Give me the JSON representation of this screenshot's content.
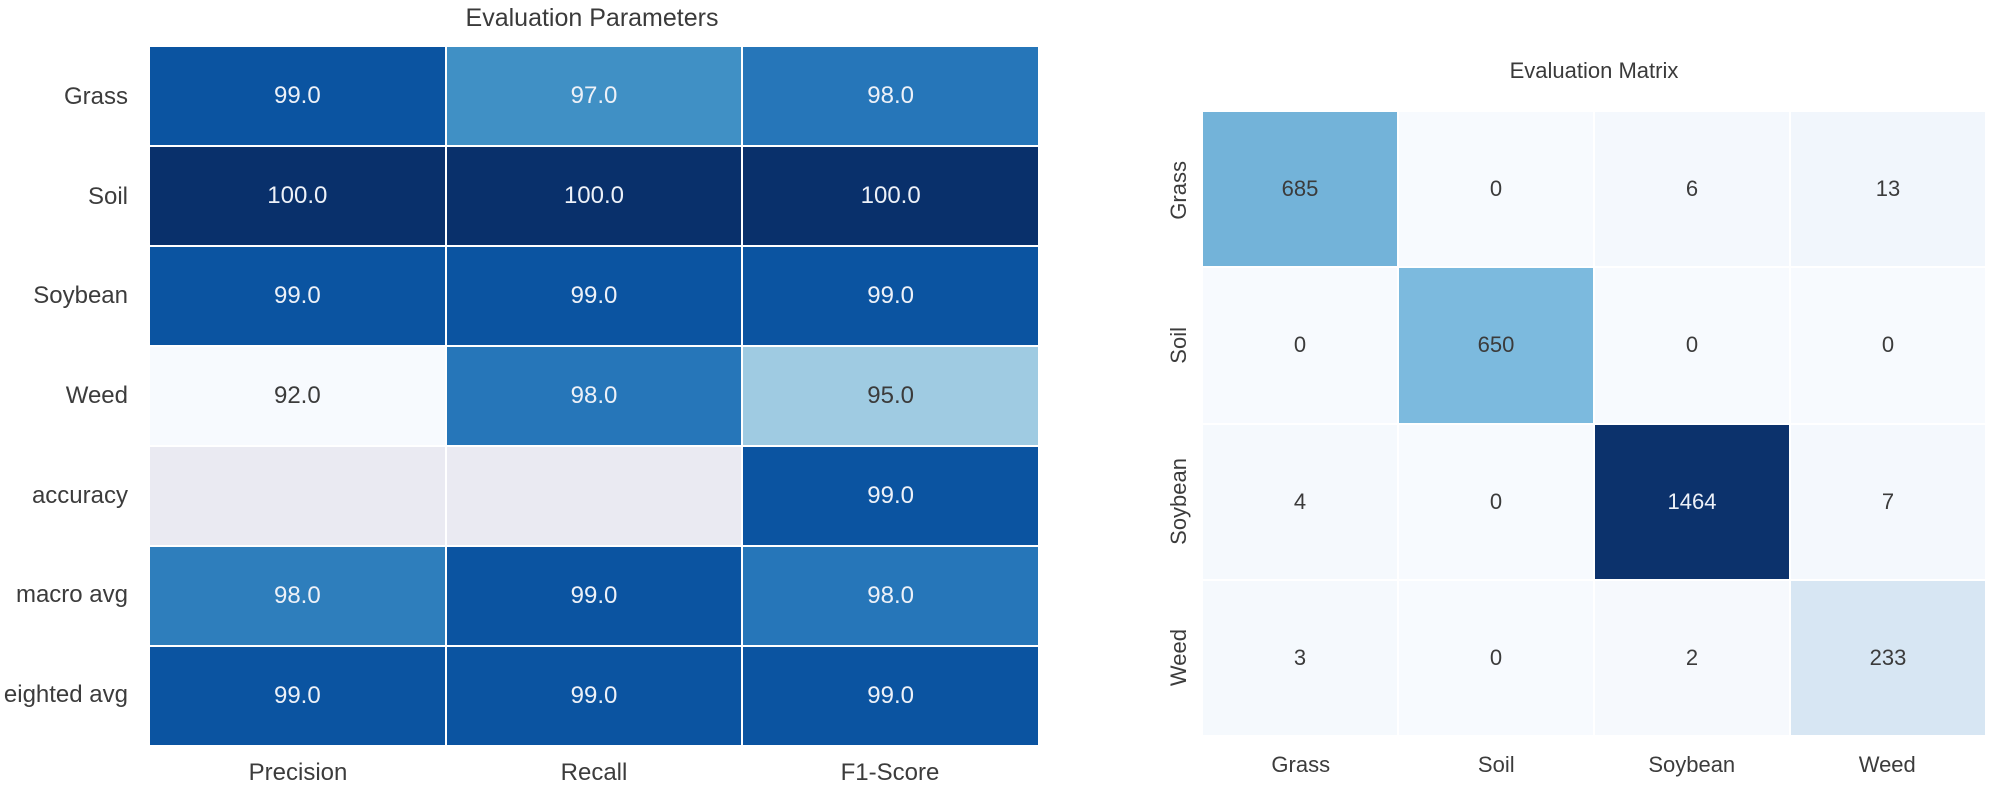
{
  "accent_colors": {
    "colormap": "Blues",
    "darkest_blue": "#09306b",
    "dark_blue": "#0b54a1",
    "medium_blue": "#2676b9",
    "light_blue": "#9fcbe2",
    "near_white_blue": "#f7fafe",
    "nan_cell": "#eaeaf2",
    "dark_text": "#3b3b3b",
    "light_text": "#edf1f8",
    "label_text": "#3c3c3c"
  },
  "chart_data": [
    {
      "id": "evaluation-parameters",
      "type": "heatmap",
      "title": "Evaluation Parameters",
      "row_labels": [
        "Grass",
        "Soil",
        "Soybean",
        "Weed",
        "accuracy",
        "macro avg",
        "eighted avg"
      ],
      "col_labels": [
        "Precision",
        "Recall",
        "F1-Score"
      ],
      "vmin": 92,
      "vmax": 100,
      "values": [
        [
          99.0,
          97.0,
          98.0
        ],
        [
          100.0,
          100.0,
          100.0
        ],
        [
          99.0,
          99.0,
          99.0
        ],
        [
          92.0,
          98.0,
          95.0
        ],
        [
          null,
          null,
          99.0
        ],
        [
          98.0,
          99.0,
          98.0
        ],
        [
          99.0,
          99.0,
          99.0
        ]
      ],
      "cell_text": [
        [
          "99.0",
          "97.0",
          "98.0"
        ],
        [
          "100.0",
          "100.0",
          "100.0"
        ],
        [
          "99.0",
          "99.0",
          "99.0"
        ],
        [
          "92.0",
          "98.0",
          "95.0"
        ],
        [
          "",
          "",
          "99.0"
        ],
        [
          "98.0",
          "99.0",
          "98.0"
        ],
        [
          "99.0",
          "99.0",
          "99.0"
        ]
      ],
      "cell_colors": [
        [
          "#0b54a1",
          "#4090c5",
          "#2676b9"
        ],
        [
          "#09306b",
          "#09306b",
          "#09306b"
        ],
        [
          "#0b54a1",
          "#0b54a1",
          "#0b54a1"
        ],
        [
          "#f7fafe",
          "#2676b9",
          "#9fcbe2"
        ],
        [
          "#eaeaf2",
          "#eaeaf2",
          "#0b54a1"
        ],
        [
          "#2e7ebc",
          "#0b54a1",
          "#2676b9"
        ],
        [
          "#0b54a1",
          "#0b54a1",
          "#0b54a1"
        ]
      ],
      "text_colors": [
        [
          "#edf1f8",
          "#edf1f8",
          "#edf1f8"
        ],
        [
          "#edf1f8",
          "#edf1f8",
          "#edf1f8"
        ],
        [
          "#edf1f8",
          "#edf1f8",
          "#edf1f8"
        ],
        [
          "#3b3b3b",
          "#edf1f8",
          "#3b3b3b"
        ],
        [
          "#eaeaf2",
          "#eaeaf2",
          "#edf1f8"
        ],
        [
          "#edf1f8",
          "#edf1f8",
          "#edf1f8"
        ],
        [
          "#edf1f8",
          "#edf1f8",
          "#edf1f8"
        ]
      ]
    },
    {
      "id": "evaluation-matrix",
      "type": "heatmap",
      "title": "Evaluation Matrix",
      "row_labels": [
        "Grass",
        "Soil",
        "Soybean",
        "Weed"
      ],
      "col_labels": [
        "Grass",
        "Soil",
        "Soybean",
        "Weed"
      ],
      "vmin": 0,
      "vmax": 1464,
      "values": [
        [
          685,
          0,
          6,
          13
        ],
        [
          0,
          650,
          0,
          0
        ],
        [
          4,
          0,
          1464,
          7
        ],
        [
          3,
          0,
          2,
          233
        ]
      ],
      "cell_text": [
        [
          "685",
          "0",
          "6",
          "13"
        ],
        [
          "0",
          "650",
          "0",
          "0"
        ],
        [
          "4",
          "0",
          "1464",
          "7"
        ],
        [
          "3",
          "0",
          "2",
          "233"
        ]
      ],
      "cell_colors": [
        [
          "#73b3d9",
          "#f7fafe",
          "#f4f8fd",
          "#f1f6fc"
        ],
        [
          "#f7fafe",
          "#7cbade",
          "#f7fafe",
          "#f7fafe"
        ],
        [
          "#f5f9fd",
          "#f7fafe",
          "#0c326c",
          "#f4f8fd"
        ],
        [
          "#f5f9fd",
          "#f7fafe",
          "#f6f9fd",
          "#d7e6f3"
        ]
      ],
      "text_colors": [
        [
          "#3b3b3b",
          "#3b3b3b",
          "#3b3b3b",
          "#3b3b3b"
        ],
        [
          "#3b3b3b",
          "#3b3b3b",
          "#3b3b3b",
          "#3b3b3b"
        ],
        [
          "#3b3b3b",
          "#3b3b3b",
          "#edf1f8",
          "#3b3b3b"
        ],
        [
          "#3b3b3b",
          "#3b3b3b",
          "#3b3b3b",
          "#3b3b3b"
        ]
      ]
    }
  ]
}
